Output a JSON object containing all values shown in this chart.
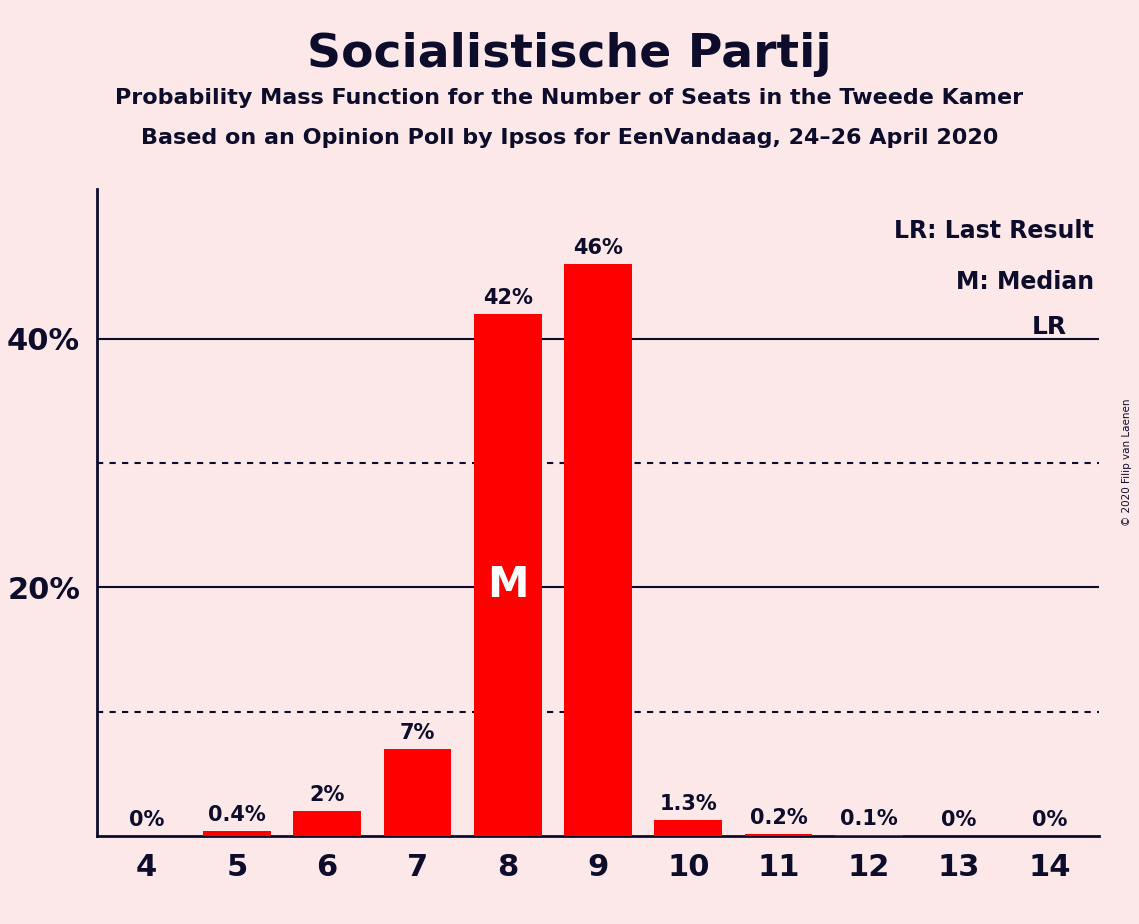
{
  "title": "Socialistische Partij",
  "subtitle1": "Probability Mass Function for the Number of Seats in the Tweede Kamer",
  "subtitle2": "Based on an Opinion Poll by Ipsos for EenVandaag, 24–26 April 2020",
  "copyright": "© 2020 Filip van Laenen",
  "categories": [
    4,
    5,
    6,
    7,
    8,
    9,
    10,
    11,
    12,
    13,
    14
  ],
  "values": [
    0.0,
    0.4,
    2.0,
    7.0,
    42.0,
    46.0,
    1.3,
    0.2,
    0.1,
    0.0,
    0.0
  ],
  "labels": [
    "0%",
    "0.4%",
    "2%",
    "7%",
    "42%",
    "46%",
    "1.3%",
    "0.2%",
    "0.1%",
    "0%",
    "0%"
  ],
  "bar_color": "#ff0000",
  "background_color": "#fce8e8",
  "text_color": "#0d0d2b",
  "median_seat": 8,
  "lr_seat": 14,
  "ylim": [
    0,
    52
  ],
  "solid_yticks": [
    20,
    40
  ],
  "dotted_yticks": [
    10,
    30
  ],
  "legend_lr": "LR: Last Result",
  "legend_m": "M: Median",
  "lr_label": "LR"
}
